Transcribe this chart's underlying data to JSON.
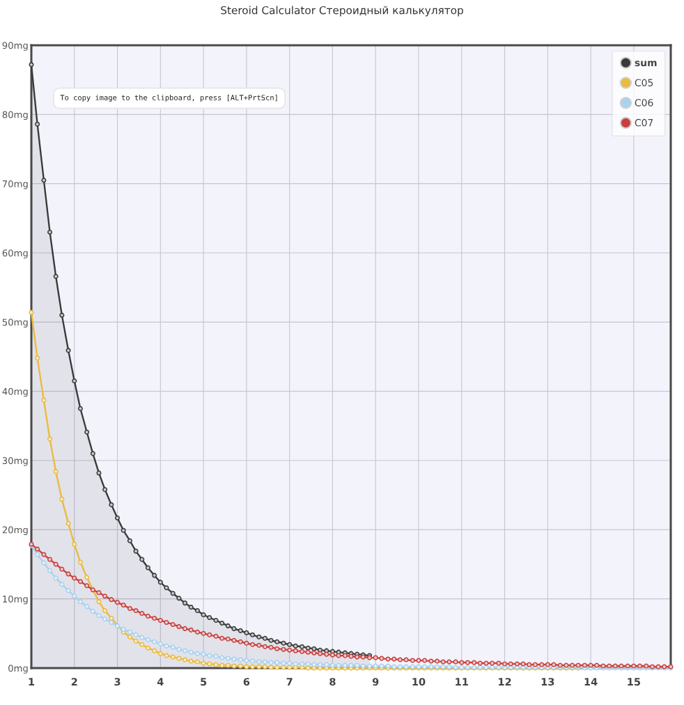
{
  "chart_data": {
    "type": "line",
    "title": "Steroid Calculator Стероидный калькулятор",
    "annotations": [
      "To copy image to the clipboard, press [ALT+PrtScn]"
    ],
    "x": [
      1,
      1.14,
      1.29,
      1.43,
      1.57,
      1.71,
      1.86,
      2,
      2.14,
      2.29,
      2.43,
      2.57,
      2.71,
      2.86,
      3,
      3.14,
      3.29,
      3.43,
      3.57,
      3.71,
      3.86,
      4,
      4.14,
      4.29,
      4.43,
      4.57,
      4.71,
      4.86,
      5,
      5.14,
      5.29,
      5.43,
      5.57,
      5.71,
      5.86,
      6,
      6.14,
      6.29,
      6.43,
      6.57,
      6.71,
      6.86,
      7,
      7.14,
      7.29,
      7.43,
      7.57,
      7.71,
      7.86,
      8,
      8.14,
      8.29,
      8.43,
      8.57,
      8.71,
      8.86,
      9,
      9.14,
      9.29,
      9.43,
      9.57,
      9.71,
      9.86,
      10,
      10.14,
      10.29,
      10.43,
      10.57,
      10.71,
      10.86,
      11,
      11.14,
      11.29,
      11.43,
      11.57,
      11.71,
      11.86,
      12,
      12.14,
      12.29,
      12.43,
      12.57,
      12.71,
      12.86,
      13,
      13.14,
      13.29,
      13.43,
      13.57,
      13.71,
      13.86,
      14,
      14.14,
      14.29,
      14.43,
      14.57,
      14.71,
      14.86,
      15,
      15.14,
      15.29,
      15.43,
      15.57,
      15.71,
      15.86
    ],
    "series": [
      {
        "name": "sum",
        "type": "area",
        "color": "#3a3a3a",
        "values": [
          87.2,
          78.6,
          70.5,
          63.0,
          56.6,
          51.0,
          45.9,
          41.5,
          37.5,
          34.1,
          31.0,
          28.2,
          25.8,
          23.6,
          21.7,
          19.9,
          18.4,
          16.9,
          15.7,
          14.5,
          13.4,
          12.4,
          11.6,
          10.8,
          10.1,
          9.4,
          8.8,
          8.3,
          7.7,
          7.3,
          6.9,
          6.5,
          6.1,
          5.7,
          5.4,
          5.1,
          4.8,
          4.5,
          4.3,
          4.0,
          3.8,
          3.6,
          3.4,
          3.2,
          3.1,
          2.9,
          2.8,
          2.6,
          2.5,
          2.4,
          2.3,
          2.2,
          2.1,
          2.0,
          1.9,
          1.8,
          null,
          null,
          null,
          null,
          null,
          null,
          null,
          null,
          null,
          null,
          null,
          null,
          null,
          null,
          null,
          null,
          null,
          null,
          null,
          null,
          null,
          null,
          null,
          null,
          null,
          null,
          null,
          null,
          null,
          null,
          null,
          null,
          null,
          null,
          null,
          null,
          null,
          null,
          null,
          null,
          null,
          null,
          null,
          null,
          null,
          null,
          null,
          null,
          null
        ]
      },
      {
        "name": "C05",
        "color": "#e9bb3f",
        "values": [
          51.4,
          44.8,
          38.7,
          33.1,
          28.4,
          24.4,
          20.9,
          17.9,
          15.3,
          13.1,
          null,
          9.6,
          8.3,
          7.2,
          null,
          5.2,
          4.5,
          3.9,
          3.4,
          2.9,
          2.5,
          2.1,
          1.8,
          1.6,
          1.4,
          1.2,
          1.0,
          0.9,
          0.7,
          0.6,
          0.5,
          0.4,
          0.4,
          0.3,
          0.3,
          0.2,
          0.2,
          0.2,
          0.2,
          0.1,
          0.1,
          0.1,
          0.1,
          0.1,
          0.1,
          0,
          0,
          0,
          0,
          0,
          0,
          0,
          0,
          0,
          0,
          0,
          0,
          0,
          0,
          0,
          0,
          0,
          0,
          0,
          0,
          0,
          0,
          0,
          0,
          0,
          0,
          0,
          0,
          0,
          0,
          0,
          0,
          0,
          0,
          0,
          0,
          0,
          0,
          0,
          0,
          0,
          0,
          0,
          0,
          0,
          null,
          null,
          null,
          null,
          null,
          null,
          null,
          null,
          null,
          null,
          null,
          null,
          null,
          null,
          null
        ]
      },
      {
        "name": "C06",
        "color": "#a8d2f0",
        "values": [
          17.7,
          16.4,
          15.2,
          14.1,
          13.0,
          12.1,
          11.2,
          10.4,
          9.6,
          8.9,
          8.2,
          7.6,
          7.1,
          6.6,
          6.1,
          5.6,
          5.2,
          4.8,
          4.4,
          4.1,
          3.8,
          3.5,
          3.2,
          3.0,
          2.7,
          2.5,
          2.3,
          2.1,
          2.0,
          1.8,
          1.7,
          1.5,
          1.4,
          1.3,
          1.2,
          1.1,
          1.0,
          0.9,
          0.9,
          0.8,
          0.8,
          0.7,
          0.7,
          0.6,
          0.6,
          0.6,
          0.5,
          0.5,
          0.5,
          0.4,
          0.4,
          0.4,
          0.4,
          0.4,
          0.3,
          0.3,
          0.3,
          0.3,
          0.3,
          0.2,
          0.2,
          0.2,
          0.2,
          0.2,
          0.2,
          0.2,
          0.2,
          0.2,
          0.2,
          0.1,
          0.1,
          0.1,
          0.1,
          0.1,
          0.1,
          0.1,
          0.1,
          0.1,
          0.1,
          0.1,
          0.1,
          0.1,
          0.1,
          0.1,
          0.1,
          0.1,
          0.1,
          0.1,
          0.1,
          0.1,
          0,
          0,
          0,
          0,
          0,
          0,
          0,
          0,
          0,
          0,
          0,
          0,
          0,
          0,
          0
        ]
      },
      {
        "name": "C07",
        "color": "#c8403e",
        "values": [
          17.9,
          17.2,
          16.4,
          15.7,
          15.0,
          14.3,
          13.6,
          13.0,
          12.5,
          11.9,
          11.3,
          10.9,
          10.4,
          9.9,
          9.5,
          9.1,
          8.6,
          8.3,
          7.9,
          7.5,
          7.2,
          6.9,
          6.6,
          6.3,
          6.0,
          5.7,
          5.5,
          5.2,
          5.0,
          4.8,
          4.6,
          4.3,
          4.2,
          4.0,
          3.8,
          3.6,
          3.4,
          3.3,
          3.1,
          3.0,
          2.8,
          2.7,
          2.6,
          2.5,
          2.4,
          2.3,
          2.2,
          2.1,
          2.0,
          1.9,
          1.8,
          1.8,
          1.7,
          1.6,
          1.6,
          1.5,
          1.5,
          1.4,
          1.3,
          1.3,
          1.2,
          1.2,
          1.1,
          1.1,
          1.1,
          1.0,
          1.0,
          0.9,
          0.9,
          0.9,
          0.8,
          0.8,
          0.8,
          0.7,
          0.7,
          0.7,
          0.7,
          0.6,
          0.6,
          0.6,
          0.6,
          0.5,
          0.5,
          0.5,
          0.5,
          0.5,
          0.4,
          0.4,
          0.4,
          0.4,
          0.4,
          0.4,
          0.4,
          0.3,
          0.3,
          0.3,
          0.3,
          0.3,
          0.3,
          0.3,
          0.3,
          0.2,
          0.2,
          0.2,
          0.2
        ]
      }
    ],
    "xlim": [
      1,
      15.86
    ],
    "xticks": [
      1,
      2,
      3,
      4,
      5,
      6,
      7,
      8,
      9,
      10,
      11,
      12,
      13,
      14,
      15
    ],
    "ylim": [
      0,
      90
    ],
    "yticks": [
      {
        "value": 0,
        "label": "0mg"
      },
      {
        "value": 10,
        "label": "10mg"
      },
      {
        "value": 20,
        "label": "20mg"
      },
      {
        "value": 30,
        "label": "30mg"
      },
      {
        "value": 40,
        "label": "40mg"
      },
      {
        "value": 50,
        "label": "50mg"
      },
      {
        "value": 60,
        "label": "60mg"
      },
      {
        "value": 70,
        "label": "70mg"
      },
      {
        "value": 80,
        "label": "80mg"
      },
      {
        "value": 90,
        "label": "90mg"
      }
    ],
    "grid": true,
    "legend": "top right",
    "marker": "circle",
    "line_style": "solid"
  }
}
